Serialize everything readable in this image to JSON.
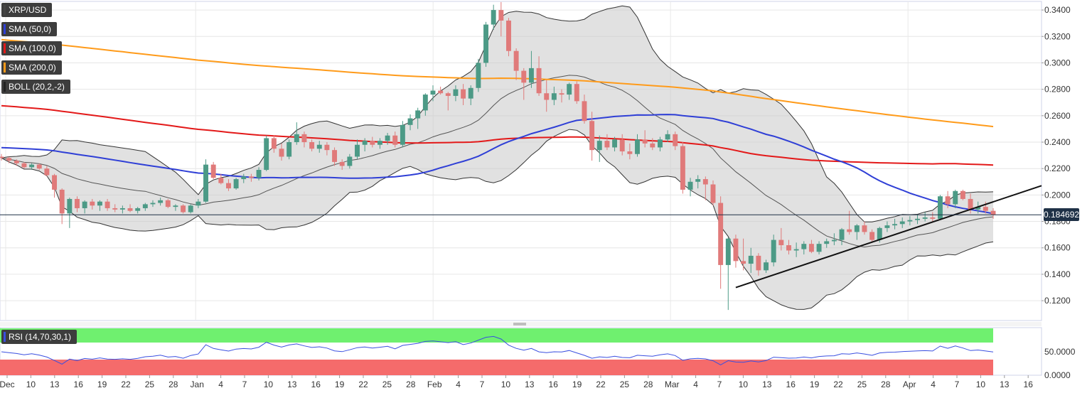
{
  "legend": [
    {
      "label": "XRP/USD",
      "color": "#444444"
    },
    {
      "label": "SMA (50,0)",
      "color": "#2f3fd6"
    },
    {
      "label": "SMA (100,0)",
      "color": "#e31919"
    },
    {
      "label": "SMA (200,0)",
      "color": "#ff9b1a"
    },
    {
      "label": "BOLL (20,2,-2)",
      "color": "#222222"
    }
  ],
  "rsi_label": "RSI (14,70,30,1)",
  "last_price": "0.184692",
  "colors": {
    "bull": "#4c9a86",
    "bear": "#e07a7a",
    "sma50": "#2f3fd6",
    "sma100": "#e31919",
    "sma200": "#ff9b1a",
    "boll_fill": "#c8c8c8",
    "rsi_line": "#3a4fe0",
    "rsi_over": "#6ff06f",
    "rsi_under": "#f56b6b"
  },
  "chart_data": {
    "type": "candlestick",
    "price_axis": {
      "ticks": [
        "0.3400",
        "0.3200",
        "0.3000",
        "0.2800",
        "0.2600",
        "0.2400",
        "0.2200",
        "0.2000",
        "0.1800",
        "0.1600",
        "0.1400",
        "0.1200"
      ],
      "ylim": [
        0.105,
        0.3465
      ]
    },
    "x_axis": {
      "ticks": [
        "Dec",
        "10",
        "13",
        "16",
        "19",
        "22",
        "25",
        "28",
        "Jan",
        "4",
        "7",
        "10",
        "13",
        "16",
        "19",
        "22",
        "25",
        "28",
        "Feb",
        "4",
        "7",
        "10",
        "13",
        "16",
        "19",
        "22",
        "25",
        "28",
        "Mar",
        "4",
        "7",
        "10",
        "13",
        "16",
        "19",
        "22",
        "25",
        "28",
        "Apr",
        "4",
        "7",
        "10",
        "13",
        "16"
      ]
    },
    "rsi_axis": {
      "ticks": [
        "50.0000",
        "0.0000"
      ],
      "ylim": [
        0,
        100
      ]
    },
    "ohlc": [
      [
        0.229,
        0.231,
        0.226,
        0.228
      ],
      [
        0.228,
        0.229,
        0.224,
        0.226
      ],
      [
        0.226,
        0.227,
        0.222,
        0.224
      ],
      [
        0.224,
        0.225,
        0.22,
        0.221
      ],
      [
        0.221,
        0.224,
        0.219,
        0.223
      ],
      [
        0.223,
        0.224,
        0.219,
        0.22
      ],
      [
        0.22,
        0.222,
        0.214,
        0.215
      ],
      [
        0.215,
        0.216,
        0.198,
        0.204
      ],
      [
        0.204,
        0.205,
        0.178,
        0.186
      ],
      [
        0.186,
        0.198,
        0.175,
        0.197
      ],
      [
        0.197,
        0.199,
        0.187,
        0.19
      ],
      [
        0.19,
        0.196,
        0.186,
        0.195
      ],
      [
        0.195,
        0.197,
        0.189,
        0.192
      ],
      [
        0.192,
        0.196,
        0.188,
        0.195
      ],
      [
        0.195,
        0.197,
        0.188,
        0.19
      ],
      [
        0.19,
        0.193,
        0.187,
        0.189
      ],
      [
        0.189,
        0.192,
        0.186,
        0.19
      ],
      [
        0.19,
        0.193,
        0.187,
        0.188
      ],
      [
        0.188,
        0.191,
        0.186,
        0.19
      ],
      [
        0.19,
        0.194,
        0.188,
        0.193
      ],
      [
        0.193,
        0.196,
        0.191,
        0.194
      ],
      [
        0.194,
        0.198,
        0.192,
        0.196
      ],
      [
        0.196,
        0.197,
        0.19,
        0.191
      ],
      [
        0.191,
        0.193,
        0.188,
        0.192
      ],
      [
        0.192,
        0.193,
        0.186,
        0.187
      ],
      [
        0.187,
        0.193,
        0.186,
        0.192
      ],
      [
        0.192,
        0.197,
        0.19,
        0.195
      ],
      [
        0.195,
        0.227,
        0.194,
        0.223
      ],
      [
        0.223,
        0.225,
        0.212,
        0.213
      ],
      [
        0.213,
        0.216,
        0.208,
        0.209
      ],
      [
        0.209,
        0.212,
        0.203,
        0.205
      ],
      [
        0.205,
        0.213,
        0.204,
        0.212
      ],
      [
        0.212,
        0.216,
        0.209,
        0.214
      ],
      [
        0.214,
        0.216,
        0.21,
        0.213
      ],
      [
        0.213,
        0.221,
        0.211,
        0.219
      ],
      [
        0.219,
        0.245,
        0.218,
        0.243
      ],
      [
        0.243,
        0.245,
        0.232,
        0.235
      ],
      [
        0.235,
        0.239,
        0.226,
        0.229
      ],
      [
        0.229,
        0.242,
        0.227,
        0.24
      ],
      [
        0.24,
        0.255,
        0.238,
        0.246
      ],
      [
        0.246,
        0.248,
        0.236,
        0.24
      ],
      [
        0.24,
        0.242,
        0.233,
        0.235
      ],
      [
        0.235,
        0.241,
        0.232,
        0.238
      ],
      [
        0.238,
        0.24,
        0.23,
        0.234
      ],
      [
        0.234,
        0.236,
        0.222,
        0.225
      ],
      [
        0.225,
        0.227,
        0.219,
        0.222
      ],
      [
        0.222,
        0.231,
        0.22,
        0.229
      ],
      [
        0.229,
        0.242,
        0.227,
        0.238
      ],
      [
        0.238,
        0.243,
        0.233,
        0.241
      ],
      [
        0.241,
        0.244,
        0.236,
        0.238
      ],
      [
        0.238,
        0.243,
        0.235,
        0.241
      ],
      [
        0.241,
        0.247,
        0.238,
        0.245
      ],
      [
        0.245,
        0.248,
        0.236,
        0.238
      ],
      [
        0.238,
        0.256,
        0.236,
        0.253
      ],
      [
        0.253,
        0.261,
        0.249,
        0.258
      ],
      [
        0.258,
        0.266,
        0.25,
        0.264
      ],
      [
        0.264,
        0.277,
        0.26,
        0.276
      ],
      [
        0.276,
        0.283,
        0.271,
        0.279
      ],
      [
        0.279,
        0.282,
        0.276,
        0.277
      ],
      [
        0.277,
        0.278,
        0.264,
        0.275
      ],
      [
        0.275,
        0.283,
        0.271,
        0.28
      ],
      [
        0.28,
        0.284,
        0.268,
        0.273
      ],
      [
        0.273,
        0.283,
        0.268,
        0.281
      ],
      [
        0.281,
        0.303,
        0.278,
        0.3
      ],
      [
        0.3,
        0.331,
        0.297,
        0.329
      ],
      [
        0.329,
        0.344,
        0.325,
        0.34
      ],
      [
        0.34,
        0.346,
        0.32,
        0.332
      ],
      [
        0.332,
        0.334,
        0.305,
        0.309
      ],
      [
        0.309,
        0.311,
        0.287,
        0.294
      ],
      [
        0.294,
        0.296,
        0.272,
        0.285
      ],
      [
        0.285,
        0.309,
        0.281,
        0.296
      ],
      [
        0.296,
        0.305,
        0.275,
        0.277
      ],
      [
        0.277,
        0.287,
        0.263,
        0.272
      ],
      [
        0.272,
        0.282,
        0.268,
        0.277
      ],
      [
        0.277,
        0.28,
        0.27,
        0.276
      ],
      [
        0.276,
        0.285,
        0.272,
        0.284
      ],
      [
        0.284,
        0.286,
        0.269,
        0.271
      ],
      [
        0.271,
        0.276,
        0.254,
        0.256
      ],
      [
        0.256,
        0.263,
        0.226,
        0.234
      ],
      [
        0.234,
        0.245,
        0.225,
        0.241
      ],
      [
        0.241,
        0.246,
        0.234,
        0.236
      ],
      [
        0.236,
        0.244,
        0.233,
        0.242
      ],
      [
        0.242,
        0.246,
        0.23,
        0.233
      ],
      [
        0.233,
        0.239,
        0.227,
        0.231
      ],
      [
        0.231,
        0.246,
        0.229,
        0.242
      ],
      [
        0.242,
        0.249,
        0.236,
        0.239
      ],
      [
        0.239,
        0.243,
        0.234,
        0.236
      ],
      [
        0.236,
        0.244,
        0.233,
        0.242
      ],
      [
        0.242,
        0.249,
        0.24,
        0.246
      ],
      [
        0.246,
        0.248,
        0.234,
        0.237
      ],
      [
        0.237,
        0.24,
        0.201,
        0.204
      ],
      [
        0.204,
        0.213,
        0.199,
        0.21
      ],
      [
        0.21,
        0.215,
        0.205,
        0.212
      ],
      [
        0.212,
        0.214,
        0.196,
        0.208
      ],
      [
        0.208,
        0.211,
        0.192,
        0.194
      ],
      [
        0.194,
        0.199,
        0.129,
        0.147
      ],
      [
        0.147,
        0.168,
        0.113,
        0.167
      ],
      [
        0.167,
        0.17,
        0.145,
        0.15
      ],
      [
        0.15,
        0.167,
        0.143,
        0.148
      ],
      [
        0.148,
        0.16,
        0.141,
        0.154
      ],
      [
        0.154,
        0.156,
        0.139,
        0.143
      ],
      [
        0.143,
        0.151,
        0.141,
        0.149
      ],
      [
        0.149,
        0.17,
        0.146,
        0.166
      ],
      [
        0.166,
        0.175,
        0.158,
        0.162
      ],
      [
        0.162,
        0.166,
        0.155,
        0.158
      ],
      [
        0.158,
        0.164,
        0.153,
        0.159
      ],
      [
        0.159,
        0.165,
        0.155,
        0.163
      ],
      [
        0.163,
        0.166,
        0.156,
        0.157
      ],
      [
        0.157,
        0.165,
        0.155,
        0.163
      ],
      [
        0.163,
        0.167,
        0.16,
        0.165
      ],
      [
        0.165,
        0.171,
        0.162,
        0.166
      ],
      [
        0.166,
        0.175,
        0.162,
        0.174
      ],
      [
        0.174,
        0.188,
        0.17,
        0.172
      ],
      [
        0.172,
        0.178,
        0.166,
        0.177
      ],
      [
        0.177,
        0.18,
        0.17,
        0.172
      ],
      [
        0.172,
        0.174,
        0.164,
        0.166
      ],
      [
        0.166,
        0.176,
        0.164,
        0.175
      ],
      [
        0.175,
        0.18,
        0.172,
        0.177
      ],
      [
        0.177,
        0.182,
        0.174,
        0.178
      ],
      [
        0.178,
        0.183,
        0.175,
        0.18
      ],
      [
        0.18,
        0.184,
        0.177,
        0.181
      ],
      [
        0.181,
        0.185,
        0.178,
        0.182
      ],
      [
        0.182,
        0.187,
        0.18,
        0.183
      ],
      [
        0.183,
        0.187,
        0.18,
        0.182
      ],
      [
        0.182,
        0.2,
        0.181,
        0.199
      ],
      [
        0.199,
        0.203,
        0.19,
        0.193
      ],
      [
        0.193,
        0.204,
        0.19,
        0.203
      ],
      [
        0.203,
        0.204,
        0.196,
        0.197
      ],
      [
        0.197,
        0.201,
        0.186,
        0.189
      ],
      [
        0.189,
        0.195,
        0.186,
        0.191
      ],
      [
        0.191,
        0.195,
        0.186,
        0.188
      ],
      [
        0.188,
        0.19,
        0.182,
        0.185
      ]
    ]
  }
}
